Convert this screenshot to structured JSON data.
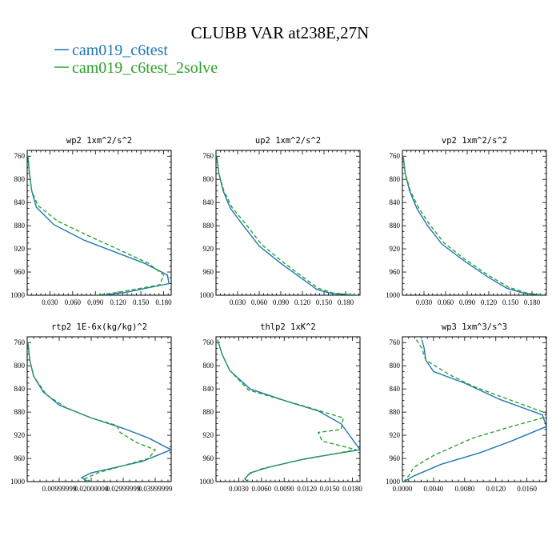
{
  "figure": {
    "title": "CLUBB VAR at238E,27N",
    "legend": [
      {
        "label": "cam019_c6test",
        "color": "#1f77b4",
        "dash": false
      },
      {
        "label": "cam019_c6test_2solve",
        "color": "#2ca02c",
        "dash": true
      }
    ]
  },
  "colors": {
    "series1": "#1f77b4",
    "series2": "#2ca02c",
    "axis": "#000000"
  },
  "chart_data": [
    {
      "type": "line",
      "title": "wp2  1xm^2/s^2",
      "xlim": [
        0,
        0.19
      ],
      "ylim": [
        1000,
        750
      ],
      "xticks": [
        0.03,
        0.06,
        0.09,
        0.12,
        0.15,
        0.18
      ],
      "xtick_labels": [
        "0.030",
        "0.060",
        "0.090",
        "0.120",
        "0.150",
        "0.180"
      ],
      "yticks": [
        760,
        800,
        840,
        880,
        920,
        960,
        1000
      ],
      "series": [
        {
          "name": "cam019_c6test",
          "points": [
            [
              0.001,
              760
            ],
            [
              0.003,
              790
            ],
            [
              0.006,
              820
            ],
            [
              0.012,
              848
            ],
            [
              0.035,
              878
            ],
            [
              0.075,
              905
            ],
            [
              0.115,
              925
            ],
            [
              0.155,
              945
            ],
            [
              0.185,
              965
            ],
            [
              0.187,
              980
            ],
            [
              0.13,
              995
            ],
            [
              0.1,
              1000
            ]
          ]
        },
        {
          "name": "cam019_c6test_2solve",
          "points": [
            [
              0.001,
              760
            ],
            [
              0.003,
              790
            ],
            [
              0.006,
              820
            ],
            [
              0.014,
              845
            ],
            [
              0.04,
              872
            ],
            [
              0.085,
              900
            ],
            [
              0.122,
              922
            ],
            [
              0.16,
              945
            ],
            [
              0.18,
              965
            ],
            [
              0.175,
              982
            ],
            [
              0.12,
              995
            ],
            [
              0.09,
              1000
            ]
          ]
        }
      ]
    },
    {
      "type": "line",
      "title": "up2  1xm^2/s^2",
      "xlim": [
        0,
        0.2
      ],
      "ylim": [
        1000,
        750
      ],
      "xticks": [
        0.03,
        0.06,
        0.09,
        0.12,
        0.15,
        0.18
      ],
      "xtick_labels": [
        "0.030",
        "0.060",
        "0.090",
        "0.120",
        "0.150",
        "0.180"
      ],
      "yticks": [
        760,
        800,
        840,
        880,
        920,
        960,
        1000
      ],
      "series": [
        {
          "name": "cam019_c6test",
          "points": [
            [
              0.001,
              760
            ],
            [
              0.004,
              790
            ],
            [
              0.01,
              820
            ],
            [
              0.02,
              850
            ],
            [
              0.038,
              880
            ],
            [
              0.06,
              915
            ],
            [
              0.09,
              945
            ],
            [
              0.118,
              970
            ],
            [
              0.14,
              990
            ],
            [
              0.16,
              997
            ],
            [
              0.195,
              1000
            ]
          ]
        },
        {
          "name": "cam019_c6test_2solve",
          "points": [
            [
              0.001,
              760
            ],
            [
              0.004,
              790
            ],
            [
              0.011,
              820
            ],
            [
              0.022,
              848
            ],
            [
              0.042,
              878
            ],
            [
              0.063,
              912
            ],
            [
              0.093,
              943
            ],
            [
              0.12,
              968
            ],
            [
              0.142,
              988
            ],
            [
              0.162,
              996
            ],
            [
              0.195,
              1000
            ]
          ]
        }
      ]
    },
    {
      "type": "line",
      "title": "vp2  1xm^2/s^2",
      "xlim": [
        0,
        0.2
      ],
      "ylim": [
        1000,
        750
      ],
      "xticks": [
        0.03,
        0.06,
        0.09,
        0.12,
        0.15,
        0.18
      ],
      "xtick_labels": [
        "0.030",
        "0.060",
        "0.090",
        "0.120",
        "0.150",
        "0.180"
      ],
      "yticks": [
        760,
        800,
        840,
        880,
        920,
        960,
        1000
      ],
      "series": [
        {
          "name": "cam019_c6test",
          "points": [
            [
              0.001,
              760
            ],
            [
              0.004,
              790
            ],
            [
              0.01,
              820
            ],
            [
              0.02,
              850
            ],
            [
              0.035,
              880
            ],
            [
              0.055,
              912
            ],
            [
              0.085,
              940
            ],
            [
              0.118,
              968
            ],
            [
              0.145,
              988
            ],
            [
              0.17,
              997
            ],
            [
              0.198,
              1000
            ]
          ]
        },
        {
          "name": "cam019_c6test_2solve",
          "points": [
            [
              0.001,
              760
            ],
            [
              0.004,
              790
            ],
            [
              0.011,
              820
            ],
            [
              0.022,
              848
            ],
            [
              0.038,
              878
            ],
            [
              0.058,
              910
            ],
            [
              0.087,
              938
            ],
            [
              0.12,
              966
            ],
            [
              0.147,
              986
            ],
            [
              0.172,
              996
            ],
            [
              0.198,
              1000
            ]
          ]
        }
      ]
    },
    {
      "type": "line",
      "title": "rtp2  1E-6x(kg/kg)^2",
      "xlim": [
        0,
        0.045
      ],
      "ylim": [
        1000,
        750
      ],
      "xticks": [
        0.01,
        0.02,
        0.03,
        0.04
      ],
      "xtick_labels": [
        "0.00999999",
        "0.02000000",
        "0.02999999",
        "0.03999999"
      ],
      "yticks": [
        760,
        800,
        840,
        880,
        920,
        960,
        1000
      ],
      "series": [
        {
          "name": "cam019_c6test",
          "points": [
            [
              0.0002,
              760
            ],
            [
              0.0008,
              790
            ],
            [
              0.002,
              818
            ],
            [
              0.005,
              845
            ],
            [
              0.01,
              868
            ],
            [
              0.02,
              890
            ],
            [
              0.03,
              908
            ],
            [
              0.038,
              925
            ],
            [
              0.045,
              945
            ],
            [
              0.036,
              965
            ],
            [
              0.02,
              985
            ],
            [
              0.017,
              993
            ],
            [
              0.019,
              1000
            ]
          ]
        },
        {
          "name": "cam019_c6test_2solve",
          "points": [
            [
              0.0002,
              760
            ],
            [
              0.0008,
              790
            ],
            [
              0.002,
              818
            ],
            [
              0.006,
              850
            ],
            [
              0.012,
              872
            ],
            [
              0.02,
              890
            ],
            [
              0.028,
              903
            ],
            [
              0.029,
              915
            ],
            [
              0.034,
              932
            ],
            [
              0.04,
              945
            ],
            [
              0.038,
              960
            ],
            [
              0.022,
              985
            ],
            [
              0.018,
              995
            ],
            [
              0.02,
              1000
            ]
          ]
        }
      ]
    },
    {
      "type": "line",
      "title": "thlp2  1xK^2",
      "xlim": [
        0,
        0.019
      ],
      "ylim": [
        1000,
        750
      ],
      "xticks": [
        0.003,
        0.006,
        0.009,
        0.012,
        0.015,
        0.018
      ],
      "xtick_labels": [
        "0.0030",
        "0.0060",
        "0.0090",
        "0.0120",
        "0.0150",
        "0.0180"
      ],
      "yticks": [
        760,
        800,
        840,
        880,
        920,
        960,
        1000
      ],
      "series": [
        {
          "name": "cam019_c6test",
          "points": [
            [
              0.0002,
              755
            ],
            [
              0.0008,
              780
            ],
            [
              0.0018,
              808
            ],
            [
              0.0045,
              840
            ],
            [
              0.009,
              860
            ],
            [
              0.0135,
              878
            ],
            [
              0.0165,
              900
            ],
            [
              0.0175,
              918
            ],
            [
              0.019,
              945
            ],
            [
              0.012,
              960
            ],
            [
              0.007,
              975
            ],
            [
              0.0045,
              985
            ],
            [
              0.0038,
              995
            ],
            [
              0.0042,
              1000
            ]
          ]
        },
        {
          "name": "cam019_c6test_2solve",
          "points": [
            [
              0.0002,
              755
            ],
            [
              0.0008,
              780
            ],
            [
              0.0018,
              808
            ],
            [
              0.0043,
              842
            ],
            [
              0.0085,
              858
            ],
            [
              0.0125,
              873
            ],
            [
              0.0168,
              890
            ],
            [
              0.0165,
              910
            ],
            [
              0.0135,
              915
            ],
            [
              0.014,
              930
            ],
            [
              0.0185,
              945
            ],
            [
              0.011,
              963
            ],
            [
              0.006,
              978
            ],
            [
              0.0045,
              986
            ],
            [
              0.0038,
              995
            ],
            [
              0.0043,
              1000
            ]
          ]
        }
      ]
    },
    {
      "type": "line",
      "title": "wp3  1xm^3/s^3",
      "xlim": [
        0,
        0.0185
      ],
      "ylim": [
        1000,
        750
      ],
      "xticks": [
        0.0,
        0.004,
        0.008,
        0.012,
        0.016
      ],
      "xtick_labels": [
        "0.0000",
        "0.0040",
        "0.0080",
        "0.0120",
        "0.0160"
      ],
      "yticks": [
        760,
        800,
        840,
        880,
        920,
        960,
        1000
      ],
      "series": [
        {
          "name": "cam019_c6test",
          "points": [
            [
              0.0025,
              755
            ],
            [
              0.0028,
              770
            ],
            [
              0.003,
              790
            ],
            [
              0.004,
              810
            ],
            [
              0.008,
              830
            ],
            [
              0.0125,
              858
            ],
            [
              0.018,
              885
            ],
            [
              0.0185,
              905
            ],
            [
              0.014,
              930
            ],
            [
              0.01,
              950
            ],
            [
              0.005,
              970
            ],
            [
              0.0015,
              990
            ],
            [
              0.0002,
              1000
            ]
          ]
        },
        {
          "name": "cam019_c6test_2solve",
          "points": [
            [
              0.0018,
              755
            ],
            [
              0.0025,
              770
            ],
            [
              0.003,
              790
            ],
            [
              0.006,
              815
            ],
            [
              0.009,
              835
            ],
            [
              0.012,
              850
            ],
            [
              0.0185,
              882
            ],
            [
              0.018,
              890
            ],
            [
              0.014,
              905
            ],
            [
              0.009,
              925
            ],
            [
              0.004,
              955
            ],
            [
              0.0015,
              975
            ],
            [
              0.0008,
              990
            ],
            [
              0.0002,
              1000
            ]
          ]
        }
      ]
    }
  ]
}
